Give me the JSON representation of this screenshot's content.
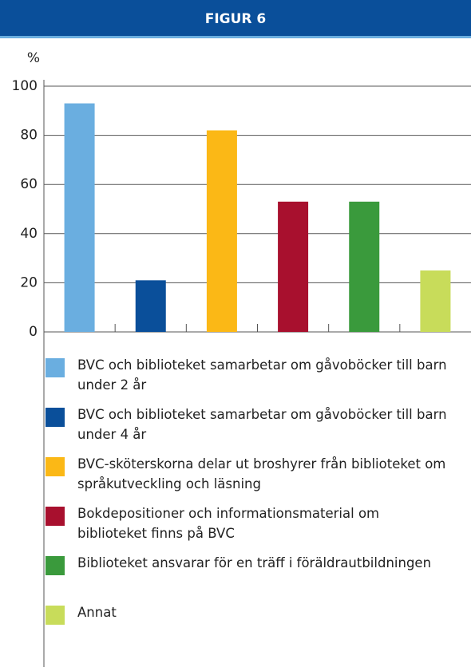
{
  "chart_data": {
    "type": "bar",
    "title": "FIGUR 6",
    "ylabel": "%",
    "categories": [
      "BVC och biblioteket samarbetar om gåvoböcker till barn under 2 år",
      "BVC och biblioteket samarbetar om gåvoböcker till barn under 4 år",
      "BVC-sköterskorna delar ut broshyrer från biblioteket om språkutveckling och läsning",
      "Bokdepositioner och informationsmaterial om biblioteket finns på BVC",
      "Biblioteket ansvarar för en träff i föräldrautbildningen",
      "Annat"
    ],
    "values": [
      93,
      21,
      82,
      53,
      53,
      25
    ],
    "colors": [
      "#6aaee0",
      "#0a4f9a",
      "#fbb816",
      "#a8102e",
      "#3a9a3c",
      "#c8dc5a"
    ],
    "ylim": [
      0,
      100
    ],
    "yticks": [
      0,
      20,
      40,
      60,
      80,
      100
    ],
    "grid": true
  }
}
